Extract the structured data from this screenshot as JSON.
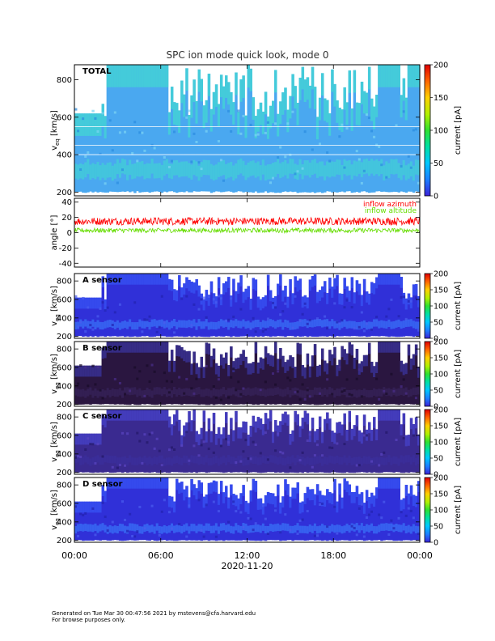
{
  "chart_data": {
    "type": "heatmap",
    "title": "SPC ion mode quick look, mode 0",
    "date_label": "2020-11-20",
    "x_tick_labels": [
      "00:00",
      "06:00",
      "12:00",
      "18:00",
      "00:00"
    ],
    "x_tick_hours": [
      0,
      6,
      12,
      18,
      24
    ],
    "x_range_hours": [
      0,
      24
    ],
    "panels": [
      {
        "name": "TOTAL",
        "type": "heatmap",
        "label": "TOTAL",
        "ylabel": "v_eq [km/s]",
        "ylim": [
          180,
          880
        ],
        "yticks": [
          200,
          400,
          600,
          800
        ],
        "colorbar": {
          "label": "current [pA]",
          "range": [
            0,
            200
          ],
          "ticks": [
            0,
            50,
            100,
            150,
            200
          ]
        },
        "palette": "cyan",
        "core_speed_km_s": 320
      },
      {
        "name": "angle",
        "type": "line",
        "ylabel": "angle [°]",
        "ylim": [
          -45,
          45
        ],
        "yticks": [
          -40,
          -20,
          0,
          20,
          40
        ],
        "series": [
          {
            "name": "inflow azimuth",
            "color": "#ff0000",
            "mean_deg": 15,
            "spread_deg": 5
          },
          {
            "name": "inflow altitude",
            "color": "#66dd00",
            "mean_deg": 3,
            "spread_deg": 3
          }
        ]
      },
      {
        "name": "A sensor",
        "type": "heatmap",
        "label": "A sensor",
        "ylabel": "v_eq [km/s]",
        "ylim": [
          180,
          880
        ],
        "yticks": [
          200,
          400,
          600,
          800
        ],
        "colorbar": {
          "label": "current [pA]",
          "range": [
            0,
            200
          ],
          "ticks": [
            0,
            50,
            100,
            150,
            200
          ]
        },
        "palette": "blue",
        "core_speed_km_s": 330
      },
      {
        "name": "B sensor",
        "type": "heatmap",
        "label": "B sensor",
        "ylabel": "v_eq [km/s]",
        "ylim": [
          180,
          880
        ],
        "yticks": [
          200,
          400,
          600,
          800
        ],
        "colorbar": {
          "label": "current [pA]",
          "range": [
            0,
            200
          ],
          "ticks": [
            0,
            50,
            100,
            150,
            200
          ]
        },
        "palette": "dark",
        "core_speed_km_s": 330
      },
      {
        "name": "C sensor",
        "type": "heatmap",
        "label": "C sensor",
        "ylabel": "v_eq [km/s]",
        "ylim": [
          180,
          880
        ],
        "yticks": [
          200,
          400,
          600,
          800
        ],
        "colorbar": {
          "label": "current [pA]",
          "range": [
            0,
            200
          ],
          "ticks": [
            0,
            50,
            100,
            150,
            200
          ]
        },
        "palette": "purple",
        "core_speed_km_s": 330
      },
      {
        "name": "D sensor",
        "type": "heatmap",
        "label": "D sensor",
        "ylabel": "v_eq [km/s]",
        "ylim": [
          180,
          880
        ],
        "yticks": [
          200,
          400,
          600,
          800
        ],
        "colorbar": {
          "label": "current [pA]",
          "range": [
            0,
            200
          ],
          "ticks": [
            0,
            50,
            100,
            150,
            200
          ]
        },
        "palette": "blue",
        "core_speed_km_s": 330
      }
    ]
  },
  "footer": {
    "line1": "Generated on Tue Mar 30 00:47:56 2021 by mstevens@cfa.harvard.edu",
    "line2": "For browse purposes only."
  }
}
